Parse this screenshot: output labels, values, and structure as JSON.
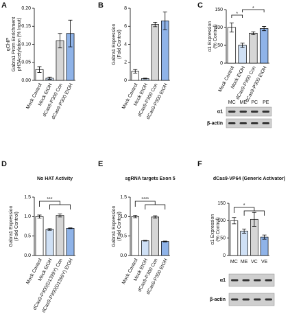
{
  "chart_data": [
    {
      "type": "bar",
      "panel": "A",
      "ylabel": [
        "qChIP",
        "Gabra1 Prom Enrichment",
        "pH3Acetylation (% Input)"
      ],
      "categories": [
        "Mock Control",
        "Mock EtOH",
        "dCas9-P300 Con",
        "dCas9-P300 EtOH"
      ],
      "values": [
        0.03,
        0.006,
        0.11,
        0.13
      ],
      "errors": [
        0.008,
        0.003,
        0.02,
        0.037
      ],
      "colors": [
        "#ffffff",
        "#cfe0f5",
        "#d6d6d6",
        "#8fb3e8"
      ],
      "ylim": [
        0,
        0.2
      ],
      "yticks": [
        {
          "value": 0,
          "label": "0.00"
        },
        {
          "value": 0.05,
          "label": "0.05"
        },
        {
          "value": 0.1,
          "label": "0.10"
        },
        {
          "value": 0.15,
          "label": "0.15"
        },
        {
          "value": 0.2,
          "label": "0.20"
        }
      ]
    },
    {
      "type": "bar",
      "panel": "B",
      "ylabel": [
        "Gabra1 Expression",
        "(Fold Control)"
      ],
      "categories": [
        "Mock Control",
        "Mock EtOH",
        "dCas9-P300 Con",
        "dCas9-P300 EtOH"
      ],
      "values": [
        1.0,
        0.2,
        6.2,
        6.6
      ],
      "errors": [
        0.2,
        0.05,
        0.25,
        1.0
      ],
      "colors": [
        "#ffffff",
        "#cfe0f5",
        "#d6d6d6",
        "#8fb3e8"
      ],
      "ylim": [
        0,
        8
      ],
      "yticks": [
        0,
        2,
        4,
        6,
        8
      ]
    },
    {
      "type": "bar",
      "panel": "C",
      "ylabel": [
        "α1 Expression",
        "(% Control)"
      ],
      "categories": [
        "Mock Control",
        "Mock EtOH",
        "dCas9-P300 Con",
        "dCas9-P300 EtOH"
      ],
      "values": [
        100,
        50,
        84,
        97
      ],
      "errors": [
        13,
        6,
        4,
        6
      ],
      "colors": [
        "#ffffff",
        "#cfe0f5",
        "#d6d6d6",
        "#8fb3e8"
      ],
      "ylim": [
        0,
        150
      ],
      "yticks": [
        0,
        50,
        100,
        150
      ],
      "significance": [
        "*",
        "*"
      ],
      "blot": {
        "lanes": [
          "MC",
          "ME",
          "PC",
          "PE"
        ],
        "rows": [
          "α1",
          "β-actin"
        ]
      }
    },
    {
      "type": "bar",
      "panel": "D",
      "title": "No HAT Activity",
      "ylabel": [
        "Gabra1 Expression",
        "(Fold Control)"
      ],
      "categories": [
        "Mock Control",
        "Mock EtOH",
        "dCas9-P300(D1399Y) Con",
        "dCas9-P300(D1399Y) EtOH"
      ],
      "values": [
        1.0,
        0.67,
        1.03,
        0.7
      ],
      "errors": [
        0.04,
        0.02,
        0.04,
        0.01
      ],
      "colors": [
        "#ffffff",
        "#cfe0f5",
        "#d6d6d6",
        "#8fb3e8"
      ],
      "ylim": [
        0,
        1.5
      ],
      "yticks": [
        {
          "value": 0,
          "label": "0.0"
        },
        {
          "value": 0.5,
          "label": "0.5"
        },
        {
          "value": 1,
          "label": "1.0"
        },
        {
          "value": 1.5,
          "label": "1.5"
        }
      ],
      "significance": [
        "***"
      ]
    },
    {
      "type": "bar",
      "panel": "E",
      "title": "sgRNA targets Exon 5",
      "ylabel": [
        "Gabra1 Expression",
        "(Fold Control)"
      ],
      "categories": [
        "Mock Control",
        "Mock EtOH",
        "dCas9-P300 Con",
        "dCas9-P300 EtOH"
      ],
      "values": [
        1.0,
        0.38,
        0.99,
        0.36
      ],
      "errors": [
        0.03,
        0.01,
        0.03,
        0.01
      ],
      "colors": [
        "#ffffff",
        "#cfe0f5",
        "#d6d6d6",
        "#8fb3e8"
      ],
      "ylim": [
        0,
        1.5
      ],
      "yticks": [
        {
          "value": 0,
          "label": "0.0"
        },
        {
          "value": 0.5,
          "label": "0.5"
        },
        {
          "value": 1,
          "label": "1.0"
        },
        {
          "value": 1.5,
          "label": "1.5"
        }
      ],
      "significance": [
        "****"
      ]
    },
    {
      "type": "bar",
      "panel": "F",
      "title": "dCas9-VP64 (Generic Activator)",
      "ylabel": [
        "α1 Expression",
        "(% Control)"
      ],
      "categories": [
        "MC",
        "ME",
        "VC",
        "VE"
      ],
      "values": [
        100,
        70,
        104,
        53
      ],
      "errors": [
        9,
        6,
        20,
        6
      ],
      "colors": [
        "#ffffff",
        "#cfe0f5",
        "#d6d6d6",
        "#8fb3e8"
      ],
      "ylim": [
        0,
        150
      ],
      "yticks": [
        0,
        50,
        100,
        150
      ],
      "significance": [
        "*"
      ],
      "blot": {
        "rows": [
          "α1",
          "β-actin"
        ]
      }
    }
  ]
}
